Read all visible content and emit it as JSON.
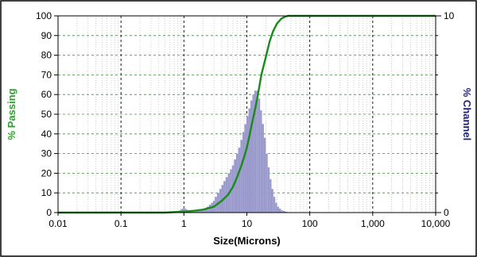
{
  "chart_data": {
    "type": "bar",
    "title": "",
    "xlabel": "Size(Microns)",
    "ylabel_left": "% Passing",
    "ylabel_right": "% Channel",
    "x_scale": "log",
    "xlim": [
      0.01,
      10000
    ],
    "ylim_left": [
      0,
      100
    ],
    "ylim_right": [
      0,
      10
    ],
    "grid": "dashed",
    "colors": {
      "passing_line": "#1a8a1a",
      "passing_label": "#2e9e2e",
      "channel_bars": "#9a9acc",
      "channel_label": "#1f1f7a",
      "grid_major_vertical": "#000000",
      "grid_horizontal": "#2e9e2e",
      "grid_minor_vertical": "#b0b0b0"
    },
    "x_ticks": [
      {
        "value": 0.01,
        "label": "0.01"
      },
      {
        "value": 0.1,
        "label": "0.1"
      },
      {
        "value": 1,
        "label": "1"
      },
      {
        "value": 10,
        "label": "10"
      },
      {
        "value": 100,
        "label": "100"
      },
      {
        "value": 1000,
        "label": "1,000"
      },
      {
        "value": 10000,
        "label": "10,000"
      }
    ],
    "y_ticks_left": [
      {
        "value": 0,
        "label": "0"
      },
      {
        "value": 10,
        "label": "10"
      },
      {
        "value": 20,
        "label": "20"
      },
      {
        "value": 30,
        "label": "30"
      },
      {
        "value": 40,
        "label": "40"
      },
      {
        "value": 50,
        "label": "50"
      },
      {
        "value": 60,
        "label": "60"
      },
      {
        "value": 70,
        "label": "70"
      },
      {
        "value": 80,
        "label": "80"
      },
      {
        "value": 90,
        "label": "90"
      },
      {
        "value": 100,
        "label": "100"
      }
    ],
    "y_ticks_right": [
      {
        "value": 0,
        "label": "0"
      },
      {
        "value": 10,
        "label": "10"
      }
    ],
    "series": [
      {
        "name": "% Channel",
        "kind": "bar",
        "axis": "right",
        "x": [
          0.8,
          0.85,
          0.9,
          0.95,
          1.0,
          1.06,
          1.12,
          1.19,
          1.26,
          1.33,
          1.41,
          1.5,
          1.6,
          1.7,
          1.8,
          1.9,
          2.0,
          2.2,
          2.4,
          2.6,
          2.8,
          3.0,
          3.2,
          3.5,
          3.8,
          4.1,
          4.4,
          4.8,
          5.2,
          5.6,
          6.0,
          6.5,
          7.0,
          7.6,
          8.2,
          8.8,
          9.5,
          10.2,
          11.0,
          11.8,
          12.7,
          13.6,
          14.6,
          15.7,
          16.8,
          18.0,
          19.3,
          20.7,
          22.2,
          23.8,
          25.5,
          27.3,
          29.3,
          31.4,
          33.6,
          36.0,
          38.6,
          41.4,
          44.4,
          47.6,
          51.0
        ],
        "y": [
          0.05,
          0.1,
          0.15,
          0.2,
          0.25,
          0.2,
          0.15,
          0.1,
          0.08,
          0.05,
          0.05,
          0.05,
          0.06,
          0.08,
          0.1,
          0.12,
          0.15,
          0.2,
          0.3,
          0.4,
          0.5,
          0.6,
          0.8,
          1.0,
          1.2,
          1.4,
          1.6,
          1.8,
          2.0,
          2.2,
          2.4,
          2.7,
          3.0,
          3.3,
          3.7,
          4.1,
          4.5,
          4.9,
          5.3,
          5.7,
          6.0,
          6.2,
          6.2,
          5.8,
          5.2,
          4.5,
          3.8,
          3.0,
          2.3,
          1.7,
          1.2,
          0.8,
          0.5,
          0.3,
          0.2,
          0.12,
          0.08,
          0.05,
          0.03,
          0.02,
          0.01
        ]
      },
      {
        "name": "% Passing",
        "kind": "line",
        "axis": "left",
        "x": [
          0.01,
          0.1,
          0.5,
          1.0,
          1.5,
          2.0,
          3.0,
          4.0,
          5.0,
          6.0,
          7.0,
          8.0,
          9.0,
          10.0,
          11.0,
          12.0,
          13.0,
          14.0,
          15.0,
          17.0,
          20.0,
          23.0,
          26.0,
          30.0,
          35.0,
          40.0,
          45.0,
          50.0,
          100.0,
          1000.0,
          10000.0
        ],
        "y": [
          0,
          0,
          0,
          0.5,
          1,
          1.5,
          3,
          6,
          9,
          13,
          18,
          23,
          28,
          33,
          39,
          45,
          50,
          55,
          60,
          70,
          79,
          87,
          92,
          96,
          98.5,
          99.5,
          100,
          100,
          100,
          100,
          100
        ]
      }
    ]
  }
}
